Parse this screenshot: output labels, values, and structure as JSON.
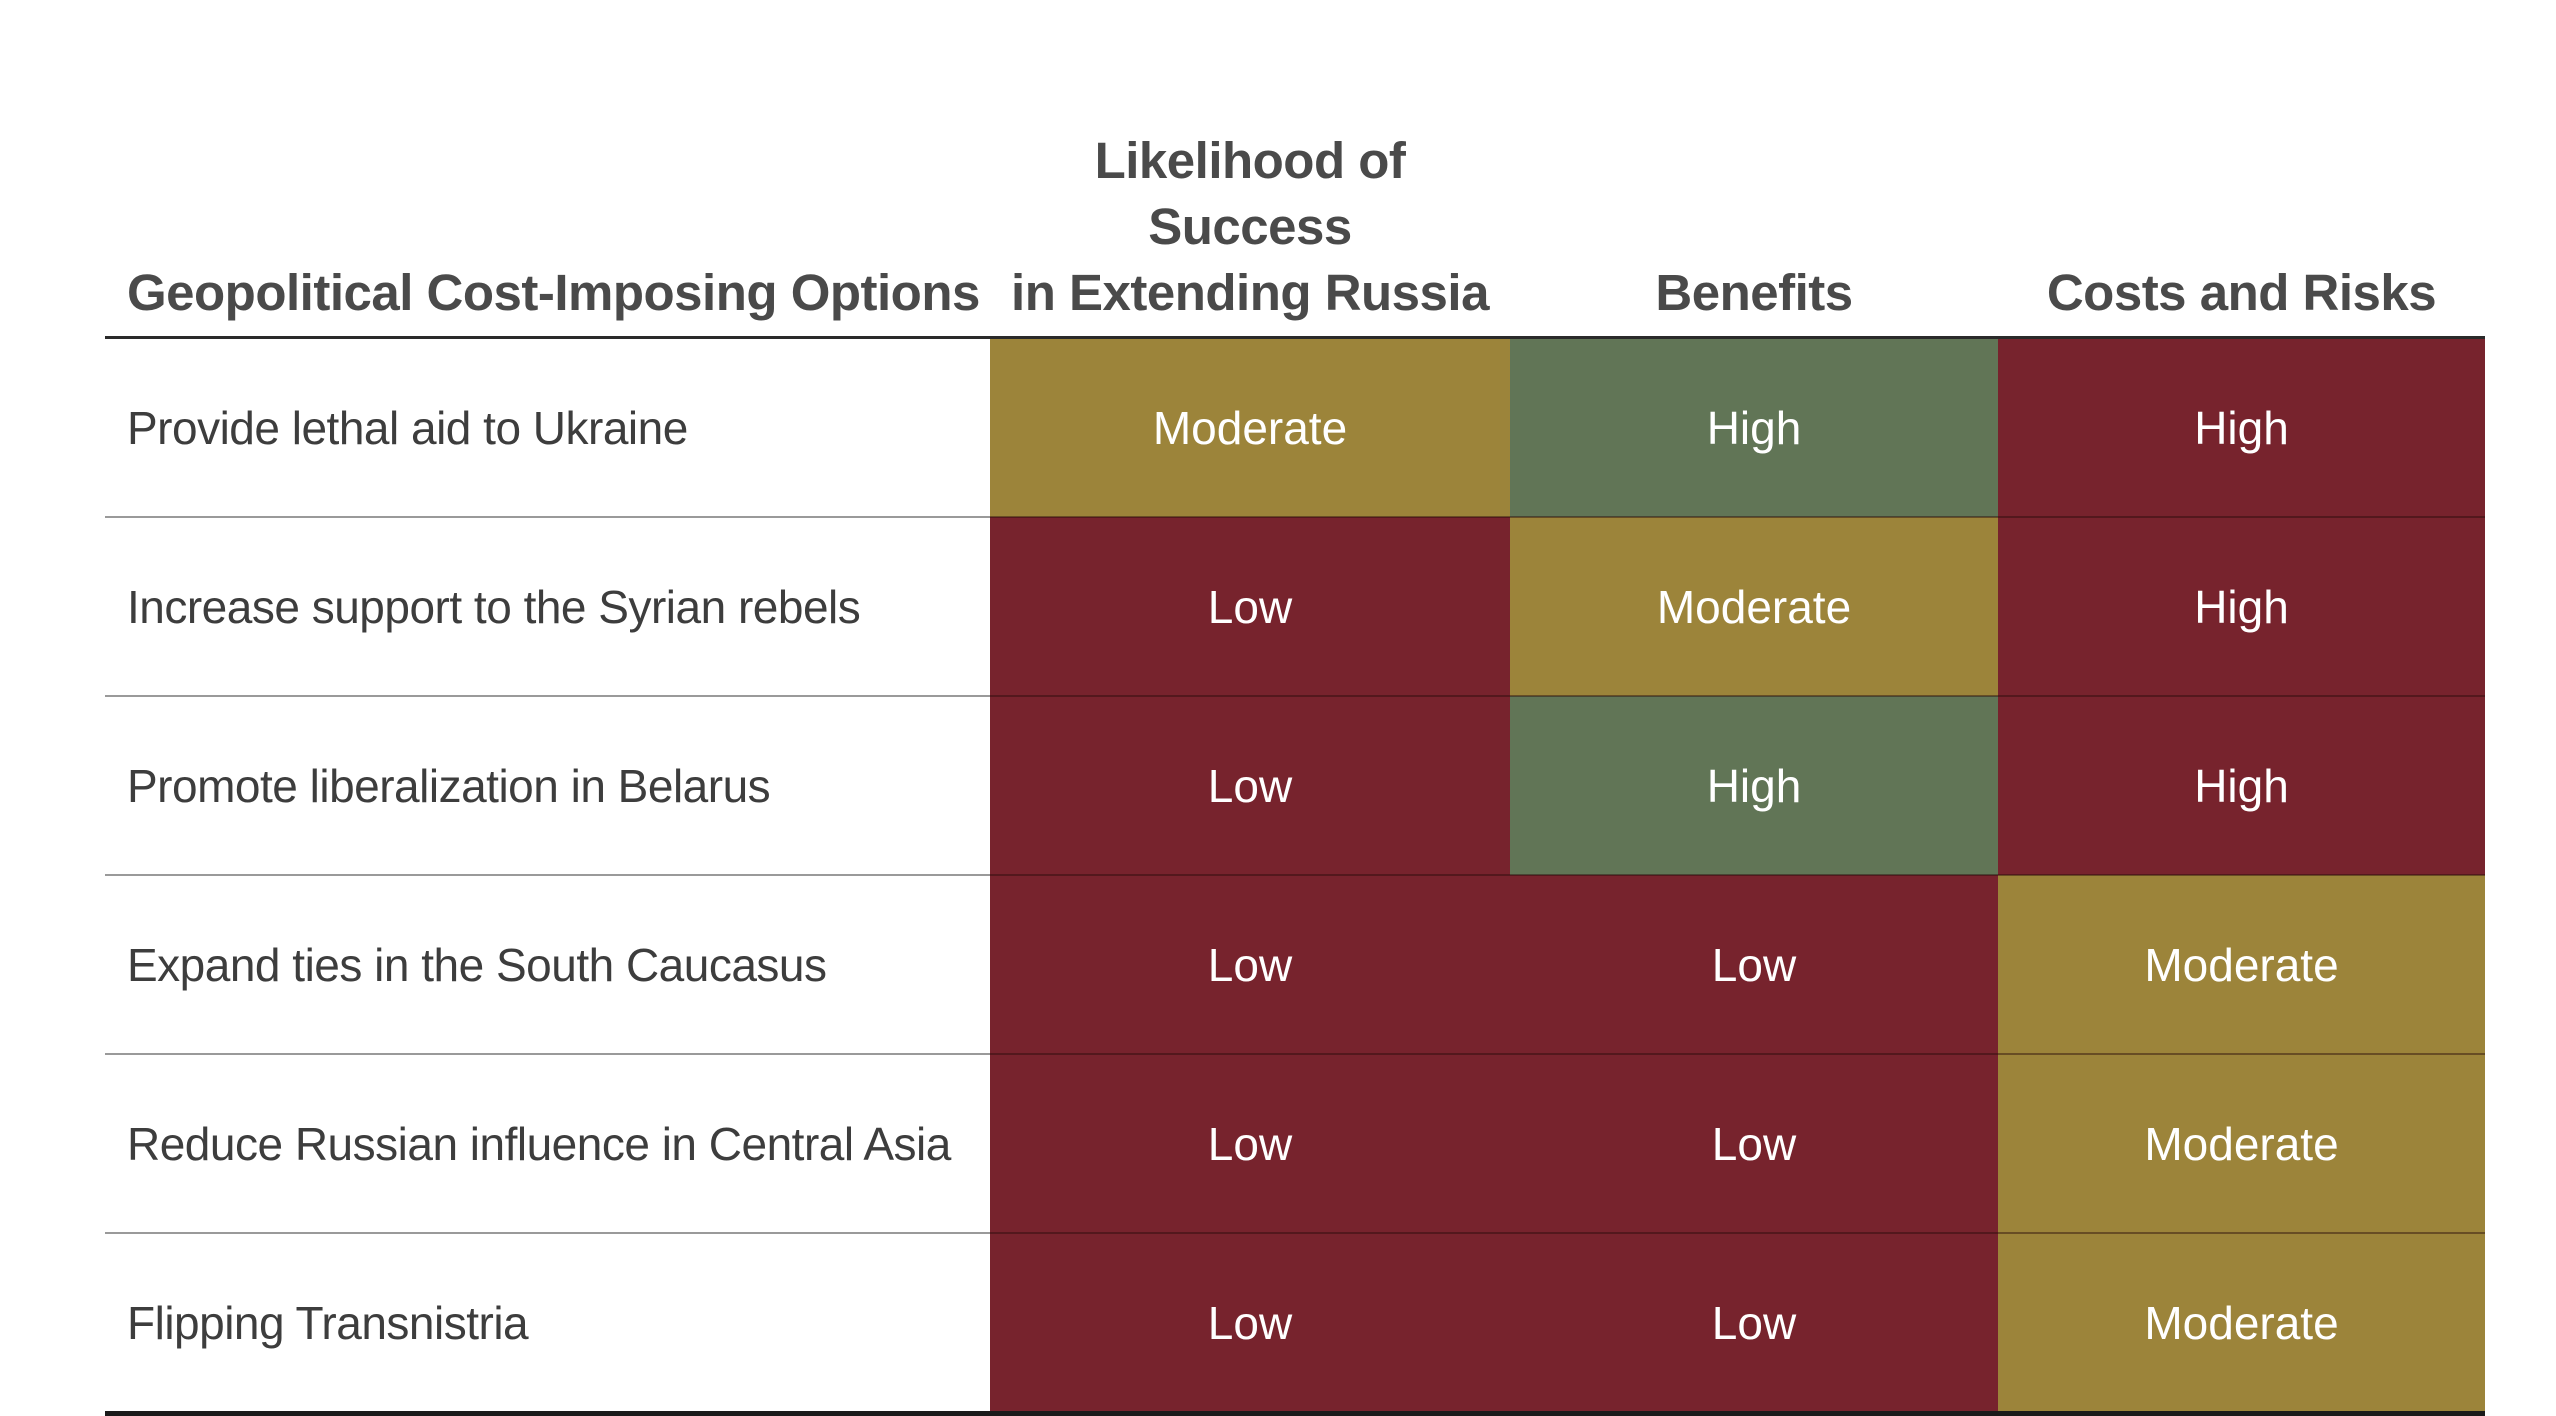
{
  "table": {
    "headers": {
      "option": "Geopolitical Cost-Imposing Options",
      "likelihood_line1": "Likelihood of Success",
      "likelihood_line2": "in Extending Russia",
      "benefits": "Benefits",
      "costs": "Costs and Risks"
    },
    "rows": [
      {
        "option": "Provide lethal aid to Ukraine",
        "likelihood": "Moderate",
        "benefits": "High",
        "costs": "High"
      },
      {
        "option": "Increase support to the Syrian rebels",
        "likelihood": "Low",
        "benefits": "Moderate",
        "costs": "High"
      },
      {
        "option": "Promote liberalization in Belarus",
        "likelihood": "Low",
        "benefits": "High",
        "costs": "High"
      },
      {
        "option": "Expand ties in the South Caucasus",
        "likelihood": "Low",
        "benefits": "Low",
        "costs": "Moderate"
      },
      {
        "option": "Reduce Russian influence in Central Asia",
        "likelihood": "Low",
        "benefits": "Low",
        "costs": "Moderate"
      },
      {
        "option": "Flipping Transnistria",
        "likelihood": "Low",
        "benefits": "Low",
        "costs": "Moderate"
      }
    ]
  },
  "colors": {
    "low": "#77232d",
    "moderate": "#9c843a",
    "high_benefit": "#617556",
    "high_cost": "#77232d"
  }
}
